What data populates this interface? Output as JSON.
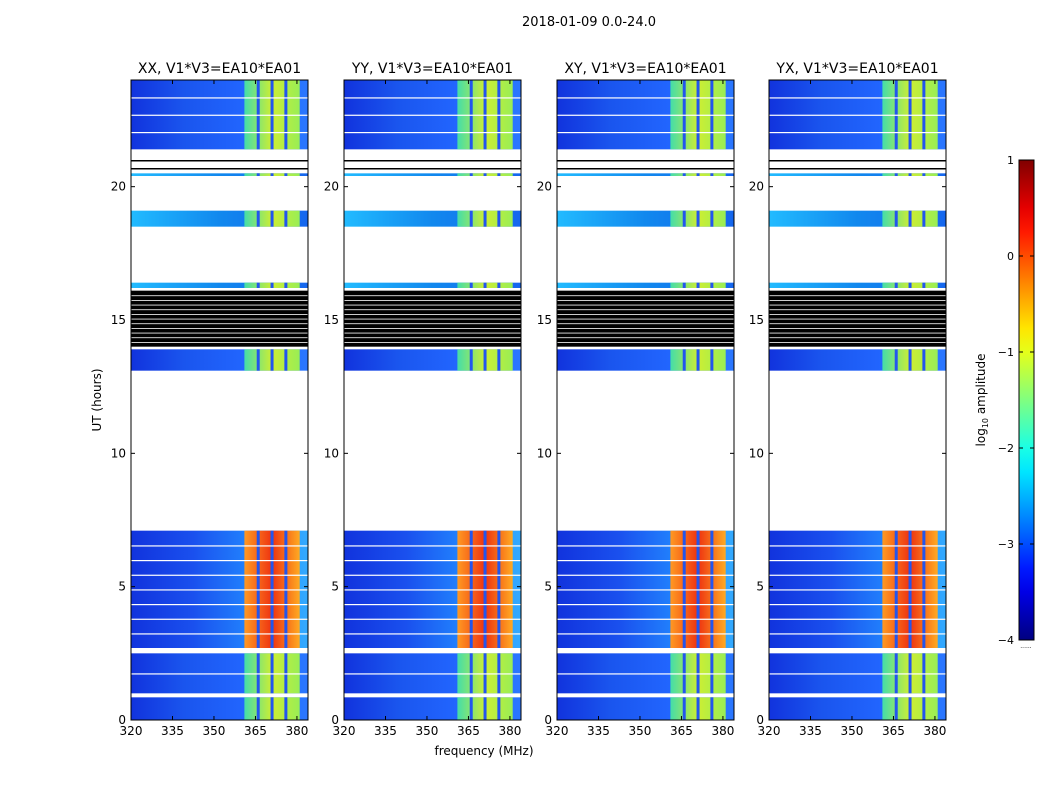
{
  "figure": {
    "suptitle": "2018-01-09 0.0-24.0",
    "xlabel": "frequency (MHz)",
    "ylabel": "UT (hours)",
    "colorbar_label_prefix": "log",
    "colorbar_label_sub": "10",
    "colorbar_label_suffix": " amplitude",
    "colorbar_note": "......"
  },
  "chart_data": {
    "type": "heatmap",
    "panels": [
      {
        "title": "XX, V1*V3=EA10*EA01",
        "pol": "XX"
      },
      {
        "title": "YY, V1*V3=EA10*EA01",
        "pol": "YY"
      },
      {
        "title": "XY, V1*V3=EA10*EA01",
        "pol": "XY"
      },
      {
        "title": "YX, V1*V3=EA10*EA01",
        "pol": "YX"
      }
    ],
    "x_range_mhz": [
      320,
      384
    ],
    "x_ticks": [
      320,
      335,
      350,
      365,
      380
    ],
    "y_range_hours": [
      0,
      24
    ],
    "y_ticks": [
      0,
      5,
      10,
      15,
      20
    ],
    "y_ticks_visible_on_left": [
      0,
      5,
      10,
      15,
      20
    ],
    "colorbar": {
      "min": -4,
      "max": 1,
      "ticks": [
        1,
        0,
        -1,
        -2,
        -3,
        -4
      ],
      "tick_labels": [
        "1",
        "0",
        "−1",
        "−2",
        "−3",
        "−4"
      ],
      "colormap": "jet"
    },
    "bright_band_mhz": [
      361,
      381
    ],
    "data_segments_hours": [
      {
        "start": 0.0,
        "end": 0.85,
        "level": "mid"
      },
      {
        "start": 1.0,
        "end": 2.5,
        "level": "mid"
      },
      {
        "start": 2.7,
        "end": 7.1,
        "level": "high"
      },
      {
        "start": 13.1,
        "end": 13.9,
        "level": "mid"
      },
      {
        "start": 16.2,
        "end": 16.4,
        "level": "low"
      },
      {
        "start": 18.5,
        "end": 19.1,
        "level": "low"
      },
      {
        "start": 20.4,
        "end": 20.5,
        "level": "low"
      },
      {
        "start": 21.4,
        "end": 24.0,
        "level": "mid"
      }
    ],
    "flagged_segments_hours": [
      {
        "start": 14.0,
        "end": 16.1
      }
    ]
  }
}
